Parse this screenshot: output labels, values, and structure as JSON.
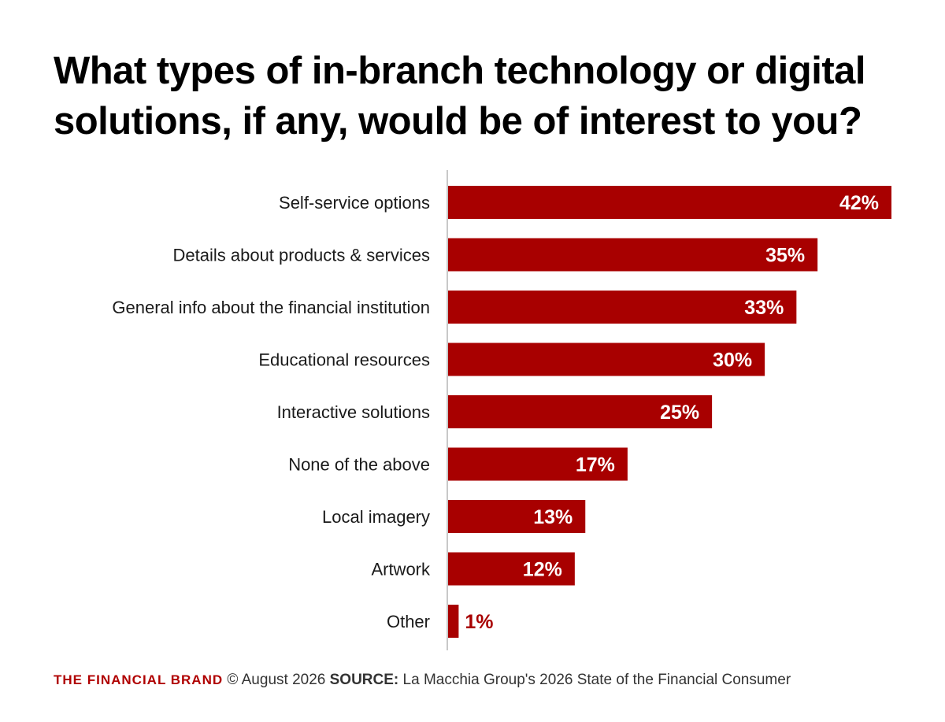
{
  "colors": {
    "bar": "#a80000",
    "axis": "#c8c8c8",
    "brand": "#b00000"
  },
  "chart_data": {
    "type": "bar",
    "orientation": "horizontal",
    "title": "What types of in-branch technology or digital solutions, if any, would be of interest to you?",
    "categories": [
      "Self-service options",
      "Details about products & services",
      "General info about the financial institution",
      "Educational resources",
      "Interactive solutions",
      "None of the above",
      "Local imagery",
      "Artwork",
      "Other"
    ],
    "values": [
      42,
      35,
      33,
      30,
      25,
      17,
      13,
      12,
      1
    ],
    "value_labels": [
      "42%",
      "35%",
      "33%",
      "30%",
      "25%",
      "17%",
      "13%",
      "12%",
      "1%"
    ],
    "xlim": [
      0,
      42
    ],
    "grid": false,
    "legend": "none"
  },
  "footer": {
    "brand": "THE FINANCIAL BRAND",
    "date": "© August 2026",
    "source_label": "SOURCE:",
    "source_text": "La Macchia Group's 2026 State of the Financial Consumer"
  }
}
